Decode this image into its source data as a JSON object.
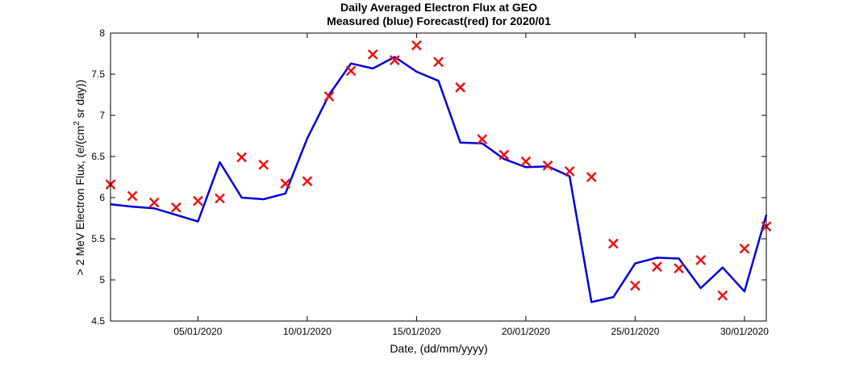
{
  "chart_data": {
    "type": "line",
    "title": "Daily Averaged Electron Flux at GEO",
    "subtitle": "Measured (blue) Forecast(red) for 2020/01",
    "xlabel": "Date, (dd/mm/yyyy)",
    "ylabel_parts": [
      "> 2 MeV Electron Flux, (e/(cm",
      "2",
      " sr day))"
    ],
    "xlim": [
      "01/01/2020",
      "31/01/2020"
    ],
    "ylim": [
      4.5,
      8
    ],
    "x_ticks": [
      "05/01/2020",
      "10/01/2020",
      "15/01/2020",
      "20/01/2020",
      "25/01/2020",
      "30/01/2020"
    ],
    "y_ticks": [
      "4.5",
      "5",
      "5.5",
      "6",
      "6.5",
      "7",
      "7.5",
      "8"
    ],
    "grid": false,
    "colors": {
      "measured": "#0000dd",
      "forecast": "#ee1111"
    },
    "x": [
      "01/01/2020",
      "02/01/2020",
      "03/01/2020",
      "04/01/2020",
      "05/01/2020",
      "06/01/2020",
      "07/01/2020",
      "08/01/2020",
      "09/01/2020",
      "10/01/2020",
      "11/01/2020",
      "12/01/2020",
      "13/01/2020",
      "14/01/2020",
      "15/01/2020",
      "16/01/2020",
      "17/01/2020",
      "18/01/2020",
      "19/01/2020",
      "20/01/2020",
      "21/01/2020",
      "22/01/2020",
      "23/01/2020",
      "24/01/2020",
      "25/01/2020",
      "26/01/2020",
      "27/01/2020",
      "28/01/2020",
      "29/01/2020",
      "30/01/2020",
      "31/01/2020"
    ],
    "series": [
      {
        "style": "line",
        "values": [
          5.92,
          5.89,
          5.87,
          5.79,
          5.71,
          6.43,
          6.0,
          5.98,
          6.05,
          6.72,
          7.25,
          7.63,
          7.57,
          7.71,
          7.53,
          7.42,
          6.67,
          6.66,
          6.47,
          6.37,
          6.38,
          6.26,
          4.73,
          4.79,
          5.2,
          5.27,
          5.26,
          4.9,
          5.15,
          4.86,
          5.79
        ]
      },
      {
        "style": "scatter",
        "marker": "x",
        "values": [
          6.16,
          6.02,
          5.94,
          5.88,
          5.96,
          5.99,
          6.49,
          6.4,
          6.17,
          6.2,
          7.23,
          7.54,
          7.74,
          7.67,
          7.85,
          7.65,
          7.34,
          6.71,
          6.52,
          6.44,
          6.39,
          6.32,
          6.25,
          5.44,
          4.93,
          5.16,
          5.14,
          5.24,
          4.81,
          5.38,
          5.65
        ]
      }
    ]
  }
}
